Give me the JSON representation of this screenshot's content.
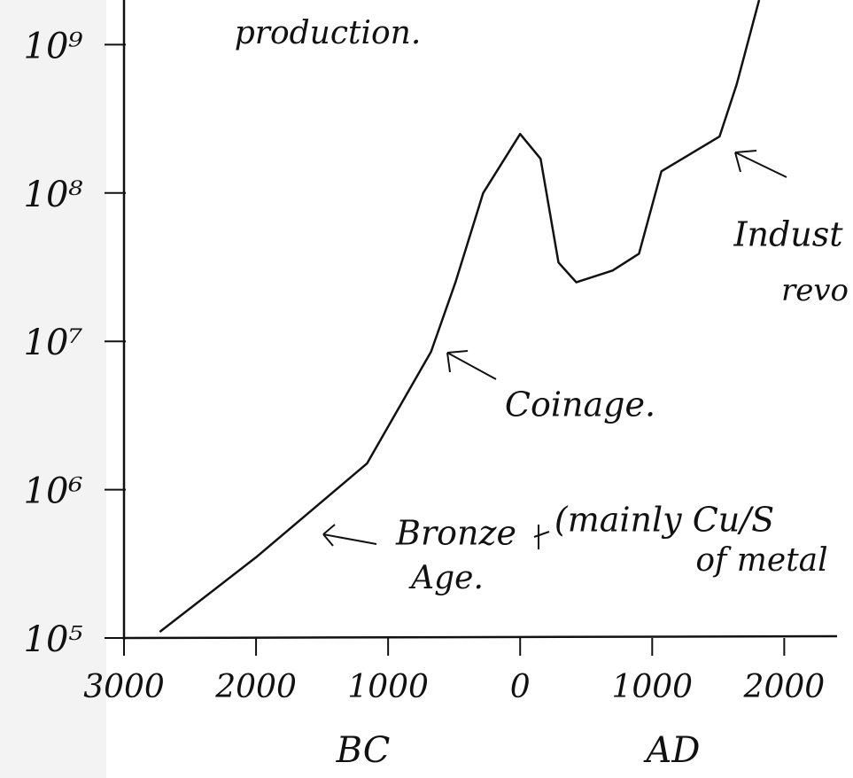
{
  "chart_data": {
    "type": "line",
    "log_scale_y": true,
    "x": [
      -2730,
      -2000,
      -1160,
      -675,
      -490,
      -280,
      0,
      155,
      290,
      425,
      700,
      900,
      1070,
      1510,
      1640,
      1810
    ],
    "series": [
      {
        "color": "#111111",
        "values": [
          110000,
          350000,
          1500000,
          8500000,
          25000000,
          100000000,
          250000000,
          170000000,
          34000000,
          25000000,
          30000000,
          39000000,
          140000000,
          240000000,
          540000000,
          2000000000
        ]
      }
    ],
    "xlim": [
      -3000,
      2400
    ],
    "ylim": [
      100000,
      2000000000
    ],
    "xticks": [
      {
        "value": -3000,
        "label": "3000"
      },
      {
        "value": -2000,
        "label": "2000"
      },
      {
        "value": -1000,
        "label": "1000"
      },
      0,
      {
        "value": 1000,
        "label": "1000"
      },
      {
        "value": 2000,
        "label": "2000"
      }
    ],
    "yticks": [
      {
        "value": 100000,
        "label": "10⁵"
      },
      {
        "value": 1000000,
        "label": "10⁶"
      },
      {
        "value": 10000000,
        "label": "10⁷"
      },
      {
        "value": 100000000,
        "label": "10⁸"
      },
      {
        "value": 1000000000,
        "label": "10⁹"
      }
    ],
    "x_group_labels": [
      "BC",
      "AD"
    ],
    "annotations": [
      "production.",
      "Coinage.",
      "Bronze",
      "Age.",
      "(mainly Cu/S",
      "of metal",
      "Indust",
      "revo"
    ]
  }
}
